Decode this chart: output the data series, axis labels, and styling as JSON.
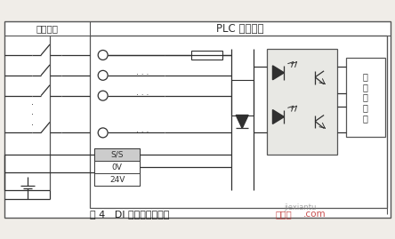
{
  "title": "图 4   DI 模块切换式电路",
  "header_left": "外部接线",
  "header_right": "PLC 内部接线",
  "bg_color": "#ffffff",
  "line_color": "#303030",
  "label_ss": "S/S",
  "label_0v": "0V",
  "label_24v": "24V",
  "label_cpu": "至\n外\n处\n理\n器",
  "watermark_cn": "接线图",
  "watermark_com": ".com",
  "watermark_en": "jiexiantu"
}
